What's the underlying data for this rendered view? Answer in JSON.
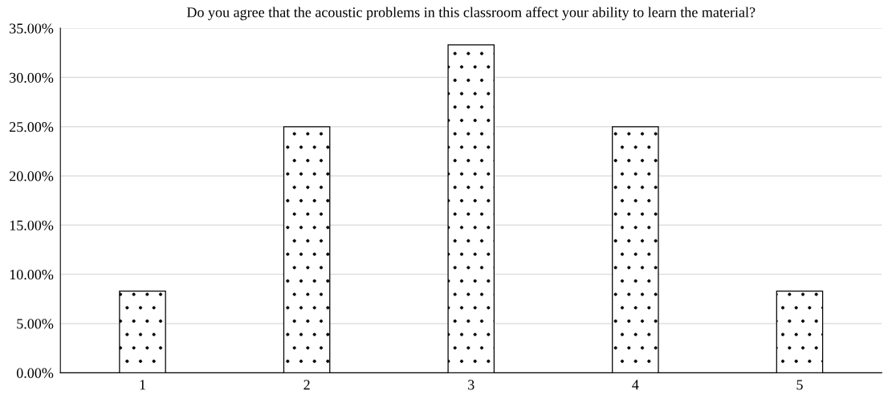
{
  "chart_data": {
    "type": "bar",
    "title": "Do you agree that the acoustic problems in this classroom affect your ability to learn the material?",
    "categories": [
      "1",
      "2",
      "3",
      "4",
      "5"
    ],
    "values": [
      8.3,
      25.0,
      33.3,
      25.0,
      8.3
    ],
    "ylim": [
      0,
      35
    ],
    "yticks": [
      {
        "value": 0,
        "label": "0.00%"
      },
      {
        "value": 5,
        "label": "5.00%"
      },
      {
        "value": 10,
        "label": "10.00%"
      },
      {
        "value": 15,
        "label": "15.00%"
      },
      {
        "value": 20,
        "label": "20.00%"
      },
      {
        "value": 25,
        "label": "25.00%"
      },
      {
        "value": 30,
        "label": "30.00%"
      },
      {
        "value": 35,
        "label": "35.00%"
      }
    ],
    "grid": "y",
    "legend": false
  }
}
